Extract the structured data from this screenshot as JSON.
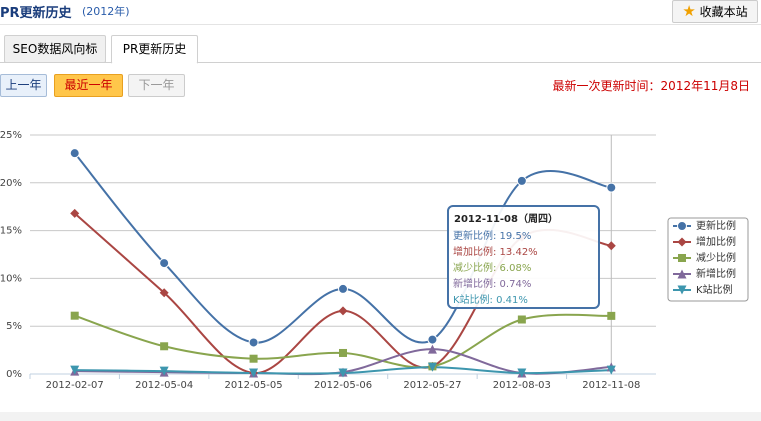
{
  "header": {
    "title": "PR更新历史",
    "year": "(2012年)",
    "bookmark": "收藏本站"
  },
  "tabs": [
    "SEO数据风向标",
    "PR更新历史"
  ],
  "nav": [
    "上一年",
    "最近一年",
    "下一年"
  ],
  "update_time": "最新一次更新时间：2012年11月8日",
  "chart_data": {
    "type": "line",
    "categories": [
      "2012-02-07",
      "2012-05-04",
      "2012-05-05",
      "2012-05-06",
      "2012-05-27",
      "2012-08-03",
      "2012-11-08"
    ],
    "series": [
      {
        "name": "更新比例",
        "color": "#4572a7",
        "marker": "circle",
        "values": [
          23.1,
          11.6,
          3.3,
          8.9,
          3.6,
          20.2,
          19.5
        ]
      },
      {
        "name": "增加比例",
        "color": "#aa4643",
        "marker": "diamond",
        "values": [
          16.8,
          8.5,
          0.1,
          6.6,
          0.8,
          14.3,
          13.42
        ]
      },
      {
        "name": "减少比例",
        "color": "#89a54e",
        "marker": "square",
        "values": [
          6.1,
          2.9,
          1.6,
          2.2,
          0.8,
          5.7,
          6.08
        ]
      },
      {
        "name": "新增比例",
        "color": "#80699b",
        "marker": "triangle",
        "values": [
          0.3,
          0.2,
          0.1,
          0.2,
          2.6,
          0.1,
          0.74
        ]
      },
      {
        "name": "K站比例",
        "color": "#3d96ae",
        "marker": "triangle-down",
        "values": [
          0.4,
          0.3,
          0.1,
          0.1,
          0.7,
          0.1,
          0.41
        ]
      }
    ],
    "ylim": [
      0,
      25
    ],
    "yticks": [
      {
        "value": 0,
        "label": "0%"
      },
      {
        "value": 5,
        "label": "5%"
      },
      {
        "value": 10,
        "label": "10%"
      },
      {
        "value": 15,
        "label": "15%"
      },
      {
        "value": 20,
        "label": "20%"
      },
      {
        "value": 25,
        "label": "25%"
      }
    ],
    "grid": true,
    "legend": "right",
    "tooltip": {
      "title": "2012-11-08（周四）",
      "lines": [
        "更新比例: 19.5%",
        "增加比例: 13.42%",
        "减少比例: 6.08%",
        "新增比例: 0.74%",
        "K站比例: 0.41%"
      ]
    }
  }
}
